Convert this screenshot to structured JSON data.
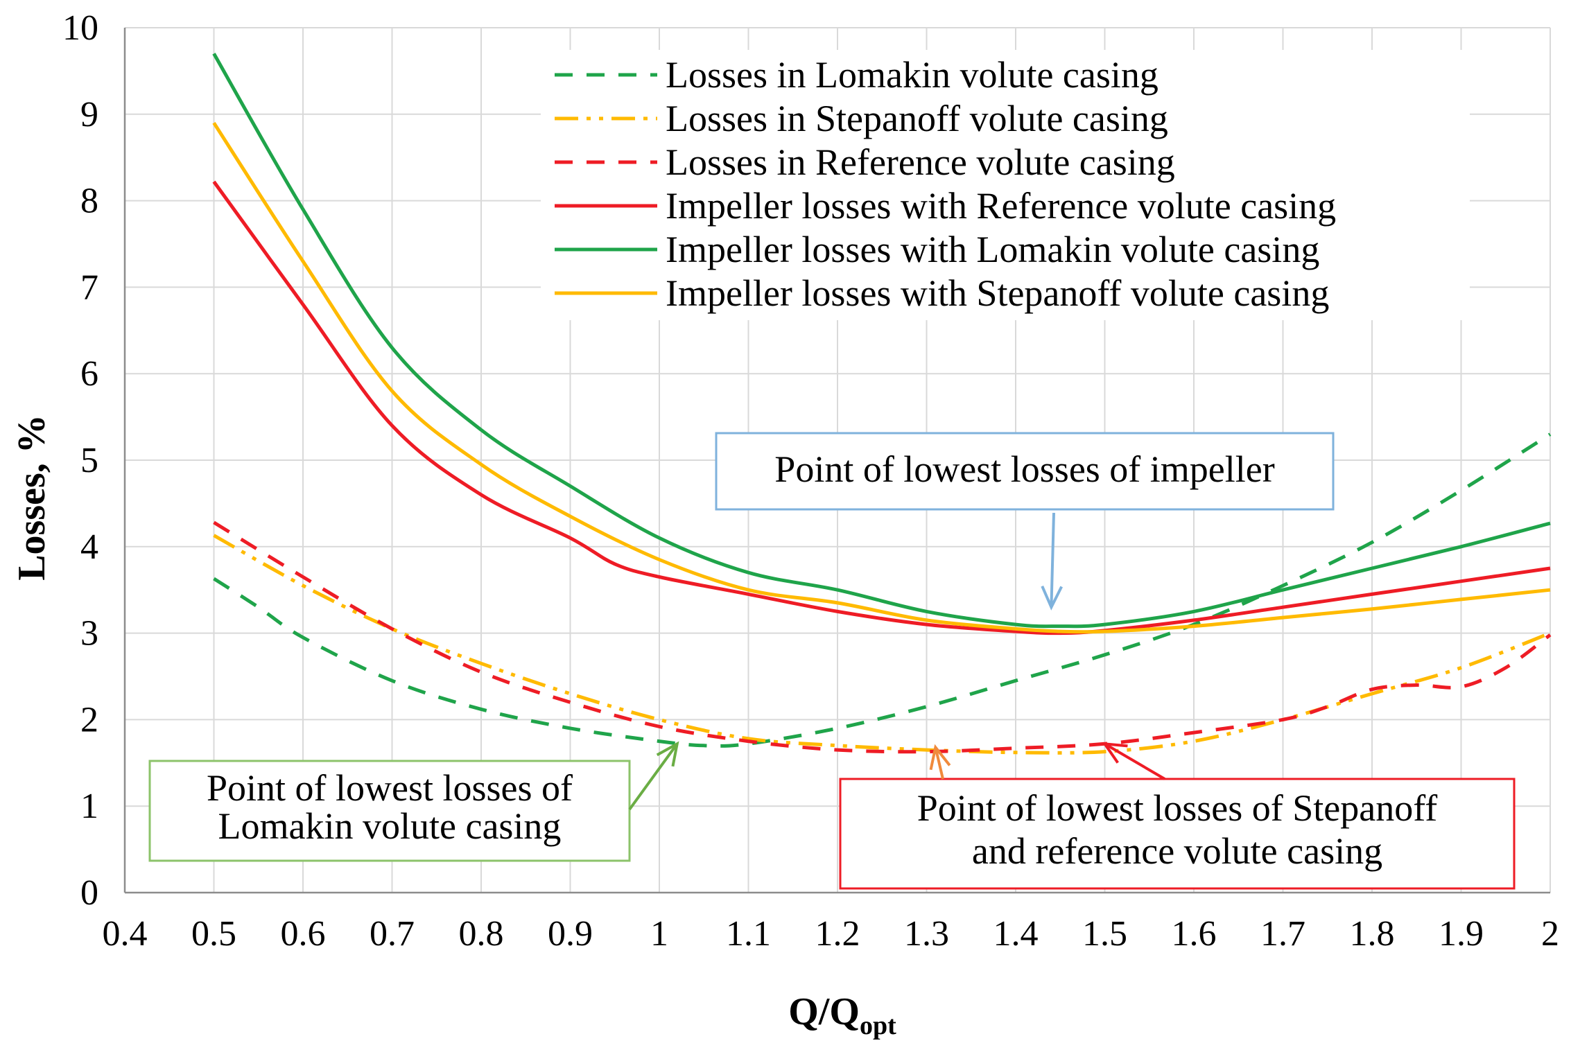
{
  "chart_data": {
    "type": "line",
    "title": "",
    "xlabel": "Q/Q",
    "xlabel_sub": "opt",
    "ylabel": "Losses, %",
    "xlim": [
      0.4,
      2.0
    ],
    "ylim": [
      0,
      10
    ],
    "grid": true,
    "x_ticks": [
      "0.4",
      "0.5",
      "0.6",
      "0.7",
      "0.8",
      "0.9",
      "1",
      "1.1",
      "1.2",
      "1.3",
      "1.4",
      "1.5",
      "1.6",
      "1.7",
      "1.8",
      "1.9",
      "2"
    ],
    "y_ticks": [
      "0",
      "1",
      "2",
      "3",
      "4",
      "5",
      "6",
      "7",
      "8",
      "9",
      "10"
    ],
    "legend_position": "top-right",
    "series": [
      {
        "name": "Losses in Lomakin volute casing",
        "color": "#1fa44a",
        "style": "dashed",
        "x": [
          0.5,
          0.55,
          0.6,
          0.7,
          0.8,
          0.9,
          1.0,
          1.05,
          1.1,
          1.2,
          1.3,
          1.4,
          1.5,
          1.6,
          1.7,
          1.8,
          1.9,
          2.0
        ],
        "y": [
          3.63,
          3.3,
          2.95,
          2.45,
          2.12,
          1.9,
          1.75,
          1.7,
          1.72,
          1.9,
          2.15,
          2.45,
          2.75,
          3.1,
          3.55,
          4.05,
          4.65,
          5.3
        ]
      },
      {
        "name": "Losses in Stepanoff volute casing",
        "color": "#ffba00",
        "style": "dash-dot-dot",
        "x": [
          0.5,
          0.6,
          0.7,
          0.8,
          0.9,
          1.0,
          1.1,
          1.2,
          1.3,
          1.4,
          1.5,
          1.6,
          1.7,
          1.8,
          1.9,
          2.0
        ],
        "y": [
          4.13,
          3.55,
          3.05,
          2.65,
          2.3,
          2.0,
          1.78,
          1.7,
          1.65,
          1.62,
          1.63,
          1.75,
          2.0,
          2.3,
          2.6,
          3.0
        ]
      },
      {
        "name": "Losses in Reference volute casing",
        "color": "#ee1c25",
        "style": "dashed",
        "x": [
          0.5,
          0.6,
          0.7,
          0.8,
          0.9,
          1.0,
          1.1,
          1.2,
          1.3,
          1.4,
          1.5,
          1.6,
          1.7,
          1.75,
          1.8,
          1.85,
          1.9,
          1.95,
          2.0
        ],
        "y": [
          4.28,
          3.65,
          3.05,
          2.55,
          2.2,
          1.92,
          1.75,
          1.65,
          1.63,
          1.67,
          1.72,
          1.85,
          2.0,
          2.15,
          2.35,
          2.4,
          2.38,
          2.6,
          2.98
        ]
      },
      {
        "name": "Impeller losses with Reference volute casing",
        "color": "#ee1c25",
        "style": "solid",
        "x": [
          0.5,
          0.6,
          0.7,
          0.8,
          0.9,
          0.95,
          1.0,
          1.1,
          1.2,
          1.3,
          1.4,
          1.45,
          1.5,
          1.6,
          1.7,
          1.8,
          1.9,
          2.0
        ],
        "y": [
          8.22,
          6.8,
          5.4,
          4.6,
          4.1,
          3.8,
          3.65,
          3.45,
          3.25,
          3.1,
          3.02,
          3.0,
          3.03,
          3.15,
          3.3,
          3.45,
          3.6,
          3.75
        ]
      },
      {
        "name": "Impeller losses with Lomakin volute casing",
        "color": "#1fa44a",
        "style": "solid",
        "x": [
          0.5,
          0.6,
          0.7,
          0.8,
          0.9,
          1.0,
          1.1,
          1.2,
          1.3,
          1.4,
          1.45,
          1.5,
          1.6,
          1.7,
          1.8,
          1.9,
          2.0
        ],
        "y": [
          9.7,
          7.9,
          6.3,
          5.35,
          4.7,
          4.1,
          3.7,
          3.5,
          3.25,
          3.1,
          3.08,
          3.1,
          3.25,
          3.5,
          3.75,
          4.0,
          4.27
        ]
      },
      {
        "name": "Impeller losses with Stepanoff volute casing",
        "color": "#ffba00",
        "style": "solid",
        "x": [
          0.5,
          0.6,
          0.7,
          0.8,
          0.9,
          1.0,
          1.1,
          1.2,
          1.3,
          1.4,
          1.45,
          1.5,
          1.6,
          1.7,
          1.8,
          1.9,
          2.0
        ],
        "y": [
          8.9,
          7.3,
          5.8,
          4.95,
          4.35,
          3.85,
          3.5,
          3.35,
          3.15,
          3.05,
          3.02,
          3.02,
          3.08,
          3.18,
          3.28,
          3.39,
          3.5
        ]
      }
    ],
    "annotations": [
      {
        "id": "impeller",
        "lines": [
          "Point of lowest losses of impeller"
        ],
        "border_color": "#7fb2dc",
        "arrow_color": "#7fb2dc",
        "target": [
          1.44,
          3.3
        ]
      },
      {
        "id": "lomakin",
        "lines": [
          "Point of lowest losses of",
          "Lomakin volute casing"
        ],
        "border_color": "#8cc36a",
        "arrow_color": "#6aad44",
        "target": [
          1.02,
          1.72
        ]
      },
      {
        "id": "stepanoff-reference",
        "lines": [
          "Point of lowest losses of Stepanoff",
          "and reference volute casing"
        ],
        "border_color": "#ee1c25",
        "arrow_color": "#ee1c25",
        "arrow2_color": "#f08a3c",
        "target": [
          1.5,
          1.72
        ],
        "target2": [
          1.31,
          1.68
        ]
      }
    ]
  }
}
